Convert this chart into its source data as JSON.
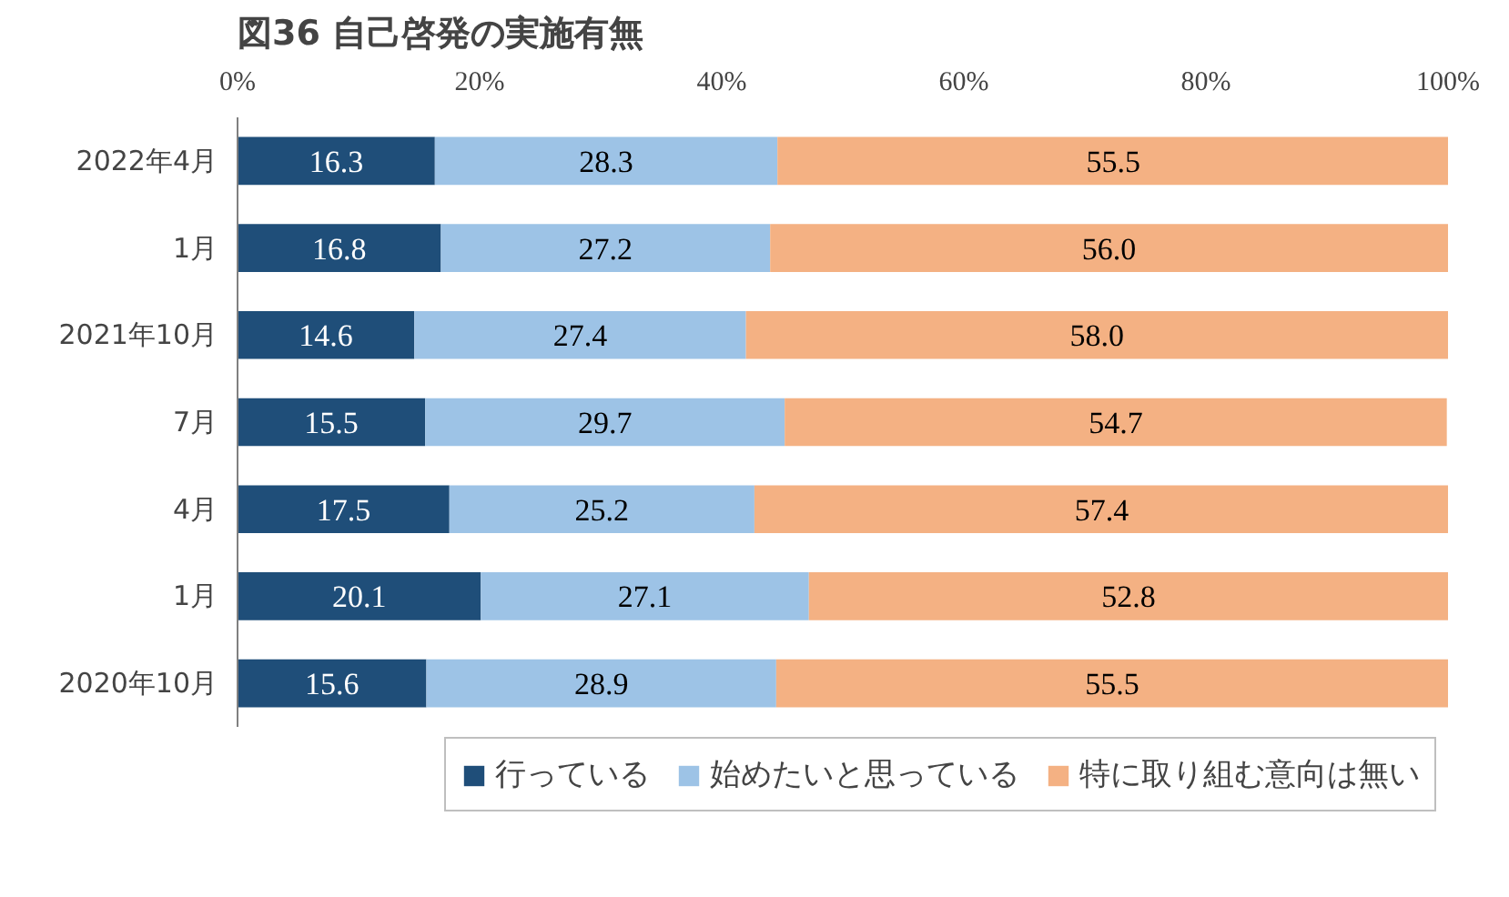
{
  "chart_data": {
    "type": "bar",
    "orientation": "horizontal",
    "stacked": true,
    "title": "図36 自己啓発の実施有無",
    "categories": [
      "2022年4月",
      "1月",
      "2021年10月",
      "7月",
      "4月",
      "1月",
      "2020年10月"
    ],
    "series": [
      {
        "name": "行っている",
        "color": "#1f4e79",
        "values": [
          16.3,
          16.8,
          14.6,
          15.5,
          17.5,
          20.1,
          15.6
        ]
      },
      {
        "name": "始めたいと思っている",
        "color": "#9dc3e6",
        "values": [
          28.3,
          27.2,
          27.4,
          29.7,
          25.2,
          27.1,
          28.9
        ]
      },
      {
        "name": "特に取り組む意向は無い",
        "color": "#f4b183",
        "values": [
          55.5,
          56.0,
          58.0,
          54.7,
          57.4,
          52.8,
          55.5
        ],
        "value_labels": [
          "55.5",
          "56.0",
          "58.0",
          "54.7",
          "57.4",
          "52.8",
          "55.5"
        ]
      }
    ],
    "xlim": [
      0,
      100
    ],
    "xticks": [
      {
        "value": 0,
        "label": "0%"
      },
      {
        "value": 20,
        "label": "20%"
      },
      {
        "value": 40,
        "label": "40%"
      },
      {
        "value": 60,
        "label": "60%"
      },
      {
        "value": 80,
        "label": "80%"
      },
      {
        "value": 100,
        "label": "100%"
      }
    ],
    "data_labels": true,
    "grid": false,
    "legend": "bottom"
  }
}
